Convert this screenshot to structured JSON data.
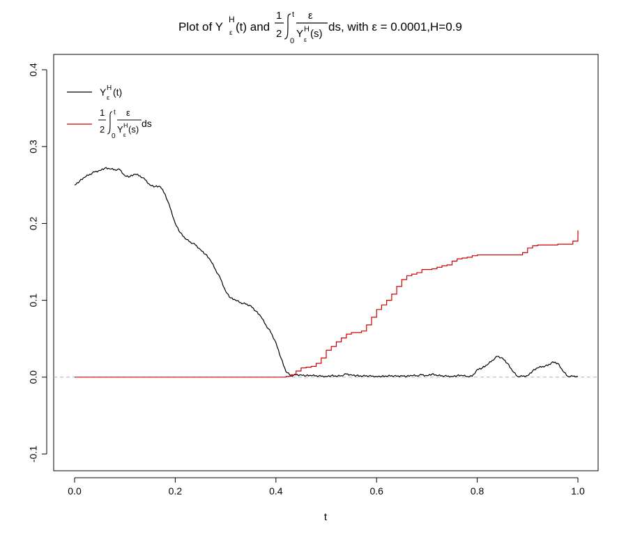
{
  "chart_data": {
    "type": "line",
    "title": {
      "prefix": "Plot of Y",
      "sup": "H",
      "sub": "ε",
      "after_y": "(t) and",
      "frac_num": "1",
      "frac_den": "2",
      "int_upper": "t",
      "int_lower": "0",
      "integrand_num": "ε",
      "integrand_den_y": "Y",
      "integrand_den_sup": "H",
      "integrand_den_sub": "ε",
      "integrand_den_arg": "(s)",
      "suffix": "ds, with ε = 0.0001,H=0.9"
    },
    "xlabel": "t",
    "ylabel": "",
    "xlim": [
      0,
      1
    ],
    "ylim": [
      -0.1,
      0.4
    ],
    "x_ticks": [
      0.0,
      0.2,
      0.4,
      0.6,
      0.8,
      1.0
    ],
    "x_tick_labels": [
      "0.0",
      "0.2",
      "0.4",
      "0.6",
      "0.8",
      "1.0"
    ],
    "y_ticks": [
      -0.1,
      0.0,
      0.1,
      0.2,
      0.3,
      0.4
    ],
    "y_tick_labels": [
      "-0.1",
      "0.0",
      "0.1",
      "0.2",
      "0.3",
      "0.4"
    ],
    "grid": false,
    "reference_line": {
      "y": 0,
      "style": "dashed",
      "color": "#b0b0b0"
    },
    "legend": {
      "placement": "top-left",
      "entries": [
        {
          "key": "Y",
          "label_y": "Y",
          "label_sup": "H",
          "label_sub": "ε",
          "label_arg": "(t)",
          "color": "#000000"
        },
        {
          "key": "I",
          "frac_num": "1",
          "frac_den": "2",
          "int_upper": "t",
          "int_lower": "0",
          "integrand_num": "ε",
          "integrand_den_y": "Y",
          "integrand_den_sup": "H",
          "integrand_den_sub": "ε",
          "integrand_den_arg": "(s)",
          "suffix": "ds",
          "color": "#cc0000"
        }
      ]
    },
    "series": [
      {
        "key": "Y",
        "color": "#000000",
        "x": [
          0.0,
          0.01,
          0.02,
          0.03,
          0.04,
          0.05,
          0.06,
          0.07,
          0.08,
          0.09,
          0.1,
          0.11,
          0.12,
          0.13,
          0.14,
          0.15,
          0.16,
          0.17,
          0.18,
          0.19,
          0.2,
          0.21,
          0.22,
          0.23,
          0.24,
          0.25,
          0.26,
          0.27,
          0.28,
          0.29,
          0.3,
          0.31,
          0.32,
          0.33,
          0.34,
          0.35,
          0.36,
          0.37,
          0.38,
          0.39,
          0.4,
          0.41,
          0.42,
          0.43,
          0.44,
          0.45,
          0.46,
          0.47,
          0.48,
          0.49,
          0.5,
          0.51,
          0.52,
          0.53,
          0.54,
          0.55,
          0.56,
          0.57,
          0.58,
          0.59,
          0.6,
          0.61,
          0.62,
          0.63,
          0.64,
          0.65,
          0.66,
          0.67,
          0.68,
          0.69,
          0.7,
          0.71,
          0.72,
          0.73,
          0.74,
          0.75,
          0.76,
          0.77,
          0.78,
          0.79,
          0.8,
          0.81,
          0.82,
          0.83,
          0.84,
          0.85,
          0.86,
          0.87,
          0.88,
          0.89,
          0.9,
          0.91,
          0.92,
          0.93,
          0.94,
          0.95,
          0.96,
          0.97,
          0.98,
          0.99,
          1.0
        ],
        "y": [
          0.25,
          0.255,
          0.26,
          0.264,
          0.267,
          0.269,
          0.272,
          0.271,
          0.27,
          0.27,
          0.262,
          0.261,
          0.264,
          0.262,
          0.257,
          0.25,
          0.248,
          0.248,
          0.238,
          0.22,
          0.2,
          0.188,
          0.18,
          0.176,
          0.172,
          0.166,
          0.16,
          0.152,
          0.14,
          0.128,
          0.112,
          0.103,
          0.1,
          0.097,
          0.095,
          0.093,
          0.086,
          0.079,
          0.068,
          0.058,
          0.045,
          0.025,
          0.007,
          0.002,
          0.003,
          0.003,
          0.002,
          0.002,
          0.002,
          0.001,
          0.001,
          0.002,
          0.001,
          0.002,
          0.004,
          0.003,
          0.002,
          0.001,
          0.002,
          0.001,
          0.001,
          0.001,
          0.001,
          0.002,
          0.001,
          0.002,
          0.001,
          0.002,
          0.002,
          0.003,
          0.002,
          0.004,
          0.002,
          0.002,
          0.001,
          0.001,
          0.002,
          0.002,
          0.001,
          0.001,
          0.01,
          0.012,
          0.016,
          0.022,
          0.027,
          0.025,
          0.018,
          0.008,
          0.001,
          0.001,
          0.002,
          0.008,
          0.012,
          0.014,
          0.015,
          0.02,
          0.018,
          0.008,
          0.001,
          0.001,
          0.001
        ]
      },
      {
        "key": "I",
        "color": "#cc0000",
        "x": [
          0.0,
          0.05,
          0.1,
          0.15,
          0.2,
          0.25,
          0.3,
          0.35,
          0.4,
          0.42,
          0.43,
          0.44,
          0.45,
          0.46,
          0.47,
          0.48,
          0.49,
          0.5,
          0.51,
          0.52,
          0.53,
          0.54,
          0.55,
          0.56,
          0.57,
          0.58,
          0.59,
          0.6,
          0.61,
          0.62,
          0.63,
          0.64,
          0.65,
          0.66,
          0.67,
          0.68,
          0.69,
          0.7,
          0.71,
          0.72,
          0.73,
          0.74,
          0.75,
          0.76,
          0.77,
          0.78,
          0.79,
          0.8,
          0.82,
          0.84,
          0.86,
          0.88,
          0.89,
          0.9,
          0.91,
          0.92,
          0.94,
          0.96,
          0.98,
          0.99,
          1.0
        ],
        "y": [
          0.0,
          0.0,
          0.0,
          0.0,
          0.0,
          0.0,
          0.0,
          0.0,
          0.0,
          0.001,
          0.003,
          0.008,
          0.012,
          0.013,
          0.014,
          0.018,
          0.025,
          0.035,
          0.04,
          0.046,
          0.051,
          0.056,
          0.058,
          0.058,
          0.06,
          0.068,
          0.078,
          0.088,
          0.094,
          0.1,
          0.108,
          0.118,
          0.127,
          0.132,
          0.134,
          0.136,
          0.14,
          0.14,
          0.141,
          0.143,
          0.145,
          0.146,
          0.151,
          0.154,
          0.155,
          0.156,
          0.158,
          0.159,
          0.159,
          0.159,
          0.159,
          0.159,
          0.162,
          0.168,
          0.171,
          0.172,
          0.172,
          0.173,
          0.173,
          0.177,
          0.191
        ]
      }
    ]
  }
}
